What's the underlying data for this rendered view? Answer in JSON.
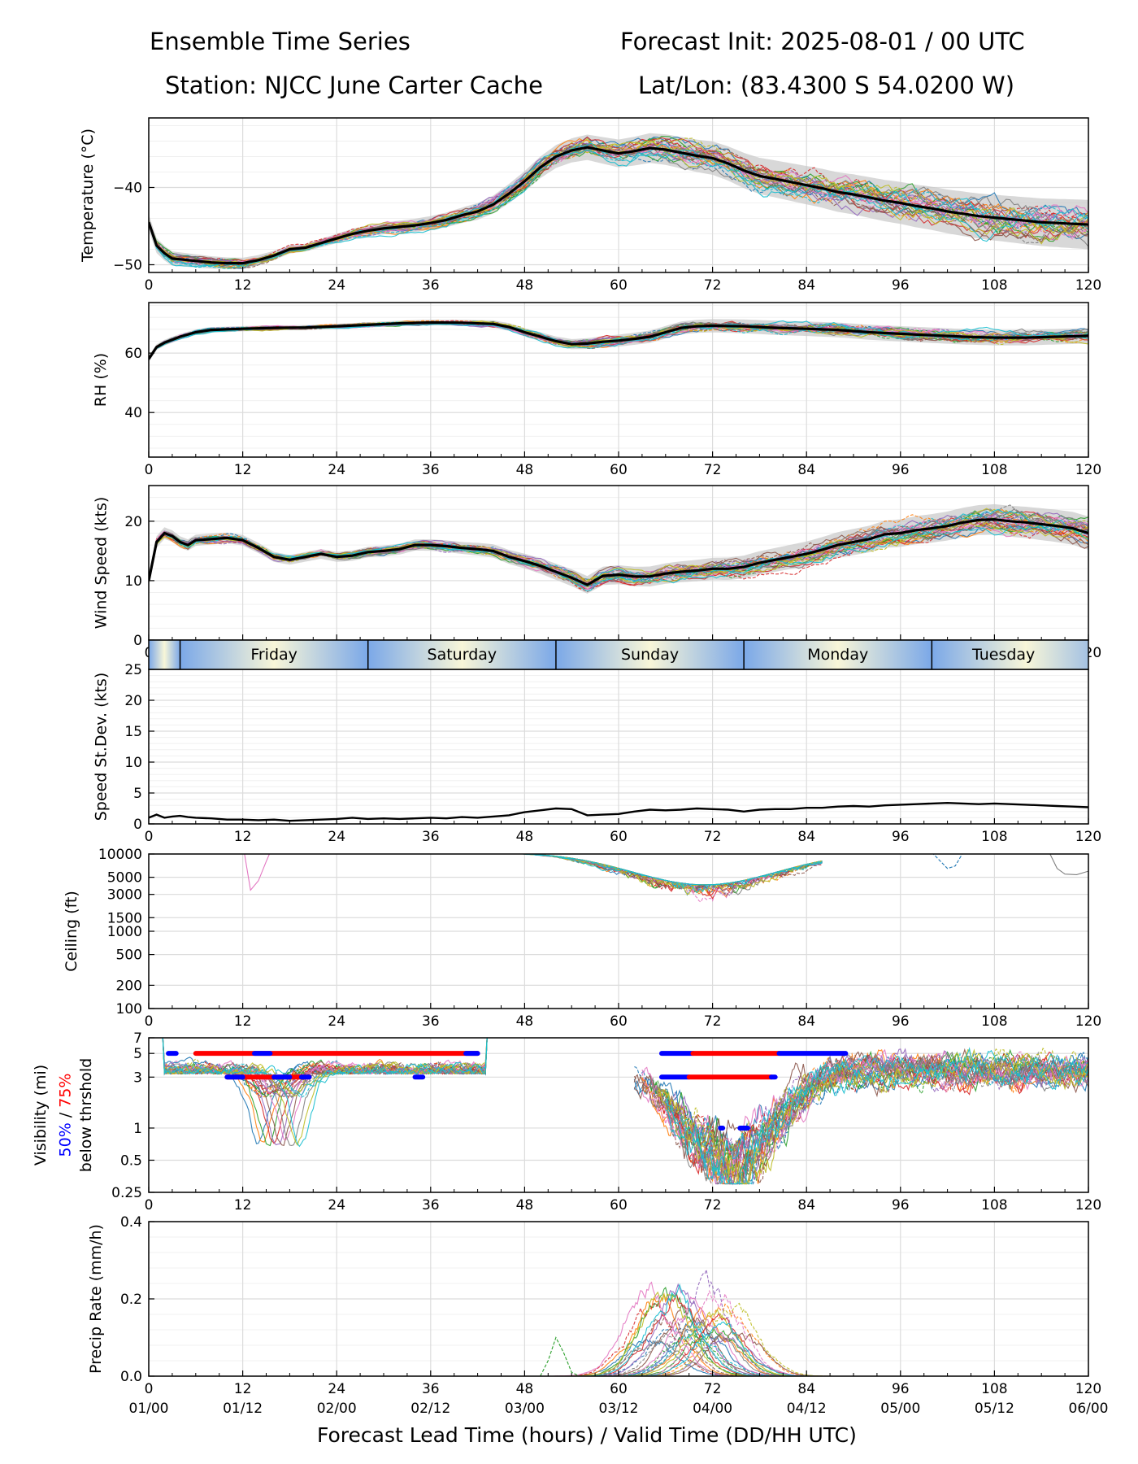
{
  "header": {
    "title_left": "Ensemble Time Series",
    "title_right": "Forecast Init: 2025-08-01 / 00 UTC",
    "station": "Station: NJCC June Carter Cache",
    "latlon": "Lat/Lon: (83.4300 S 54.0200 W)"
  },
  "xaxis": {
    "label": "Forecast Lead Time (hours) / Valid Time (DD/HH UTC)",
    "ticks": [
      0,
      12,
      24,
      36,
      48,
      60,
      72,
      84,
      96,
      108,
      120
    ],
    "valid_times": [
      "01/00",
      "01/12",
      "02/00",
      "02/12",
      "03/00",
      "03/12",
      "04/00",
      "04/12",
      "05/00",
      "05/12",
      "06/00"
    ],
    "xlim": [
      0,
      120
    ]
  },
  "days": [
    {
      "name": "Friday",
      "start": 4,
      "end": 28
    },
    {
      "name": "Saturday",
      "start": 28,
      "end": 52
    },
    {
      "name": "Sunday",
      "start": 52,
      "end": 76
    },
    {
      "name": "Monday",
      "start": 76,
      "end": 100
    },
    {
      "name": "Tuesday",
      "start": 100,
      "end": 124
    }
  ],
  "legend_note": {
    "part1": "50%",
    "sep": " / ",
    "part2": "75%",
    "color1": "#0000ff",
    "color2": "#ff0000"
  },
  "colors": {
    "mean": "#000000",
    "spread_fill": "#c8c8c8",
    "threshold_50": "#0000ff",
    "threshold_75": "#ff0000",
    "day_dark": "#7ba8e8",
    "day_light": "#f8f6d8"
  },
  "members": [
    "#1f77b4",
    "#ff7f0e",
    "#2ca02c",
    "#d62728",
    "#9467bd",
    "#8c564b",
    "#e377c2",
    "#7f7f7f",
    "#bcbd22",
    "#17becf"
  ],
  "chart_data": [
    {
      "id": "temperature",
      "type": "line",
      "ylabel": "Temperature (°C)",
      "ylim": [
        -51,
        -31
      ],
      "yticks": [
        -50,
        -40
      ],
      "ytick_labels": [
        "−50",
        "−40"
      ],
      "mean": {
        "x": [
          0,
          1,
          2,
          3,
          4,
          6,
          8,
          10,
          12,
          14,
          16,
          18,
          20,
          22,
          24,
          26,
          28,
          30,
          32,
          34,
          36,
          38,
          40,
          42,
          44,
          46,
          48,
          50,
          52,
          54,
          56,
          58,
          60,
          62,
          64,
          66,
          68,
          70,
          72,
          74,
          76,
          78,
          80,
          82,
          84,
          86,
          88,
          90,
          92,
          94,
          96,
          98,
          100,
          102,
          104,
          106,
          108,
          110,
          112,
          114,
          116,
          118,
          120
        ],
        "y": [
          -44.5,
          -47.5,
          -48.5,
          -49.2,
          -49.3,
          -49.5,
          -49.7,
          -49.8,
          -49.8,
          -49.4,
          -48.8,
          -48.0,
          -47.8,
          -47.2,
          -46.6,
          -46.0,
          -45.6,
          -45.3,
          -45.1,
          -44.9,
          -44.6,
          -44.2,
          -43.6,
          -43.1,
          -42.2,
          -40.8,
          -39.2,
          -37.4,
          -36.0,
          -35.2,
          -34.8,
          -35.2,
          -35.6,
          -35.3,
          -34.9,
          -35.1,
          -35.5,
          -35.9,
          -36.2,
          -36.9,
          -37.8,
          -38.5,
          -38.9,
          -39.3,
          -39.7,
          -40.1,
          -40.6,
          -40.9,
          -41.3,
          -41.7,
          -42.0,
          -42.4,
          -42.7,
          -43.1,
          -43.4,
          -43.7,
          -43.9,
          -44.1,
          -44.3,
          -44.5,
          -44.6,
          -44.7,
          -44.8
        ]
      },
      "spread": [
        1.0,
        0.5,
        1.0,
        1.8,
        2.4,
        2.8,
        3.2
      ]
    },
    {
      "id": "rh",
      "type": "line",
      "ylabel": "RH (%)",
      "ylim": [
        25,
        77
      ],
      "yticks": [
        40,
        60
      ],
      "ytick_labels": [
        "40",
        "60"
      ],
      "mean": {
        "x": [
          0,
          1,
          2,
          3,
          4,
          6,
          8,
          10,
          12,
          16,
          20,
          24,
          28,
          32,
          36,
          40,
          44,
          46,
          48,
          50,
          52,
          54,
          56,
          58,
          60,
          62,
          64,
          66,
          68,
          70,
          72,
          76,
          80,
          84,
          88,
          92,
          96,
          100,
          104,
          108,
          112,
          116,
          120
        ],
        "y": [
          58,
          62,
          63.5,
          64.5,
          65.5,
          67,
          67.8,
          68,
          68.2,
          68.5,
          68.6,
          69,
          69.5,
          70,
          70.3,
          70.2,
          69.8,
          68.8,
          67,
          65.5,
          64,
          63,
          63.2,
          63.8,
          64.2,
          64.8,
          65.5,
          67,
          68.5,
          69,
          69.2,
          69,
          68.5,
          68.2,
          67.8,
          67,
          66.5,
          66,
          65.5,
          65.2,
          65.2,
          65.5,
          65.8
        ]
      },
      "spread": [
        1.0,
        0.8,
        1.0,
        2.0,
        2.4,
        2.6,
        2.6
      ]
    },
    {
      "id": "wind_speed",
      "type": "line",
      "ylabel": "Wind Speed (kts)",
      "ylim": [
        0,
        26
      ],
      "yticks": [
        0,
        10,
        20
      ],
      "ytick_labels": [
        "0",
        "10",
        "20"
      ],
      "mean": {
        "x": [
          0,
          1,
          2,
          3,
          4,
          5,
          6,
          8,
          10,
          12,
          14,
          16,
          18,
          20,
          22,
          24,
          26,
          28,
          30,
          32,
          34,
          36,
          38,
          40,
          42,
          44,
          46,
          48,
          50,
          52,
          54,
          56,
          58,
          60,
          62,
          64,
          66,
          68,
          70,
          72,
          74,
          76,
          78,
          80,
          82,
          84,
          86,
          88,
          90,
          92,
          94,
          96,
          98,
          100,
          102,
          104,
          106,
          108,
          110,
          112,
          114,
          116,
          118,
          120
        ],
        "y": [
          10,
          16.5,
          18,
          17.5,
          16.5,
          16,
          16.8,
          17,
          17.2,
          16.8,
          15.5,
          14,
          13.5,
          14,
          14.5,
          14,
          14.2,
          14.8,
          15,
          15.3,
          16,
          16,
          15.8,
          15.5,
          15.3,
          15,
          14,
          13.3,
          12.5,
          11.5,
          10.5,
          9.3,
          10.8,
          11,
          10.7,
          10.7,
          11.2,
          11.5,
          11.7,
          12,
          12,
          12.3,
          13,
          13.5,
          14,
          14.5,
          15.2,
          16,
          16.5,
          17,
          17.8,
          18,
          18.5,
          18.8,
          19.2,
          19.8,
          20.2,
          20.3,
          20,
          19.8,
          19.5,
          19.2,
          18.8,
          18
        ]
      },
      "spread": [
        1.0,
        0.8,
        1.0,
        1.6,
        2.0,
        2.4,
        2.8
      ]
    },
    {
      "id": "speed_stdev",
      "type": "line",
      "ylabel": "Speed St.Dev. (kts)",
      "ylim": [
        0,
        25
      ],
      "yticks": [
        0,
        5,
        10,
        15,
        20,
        25
      ],
      "ytick_labels": [
        "0",
        "5",
        "10",
        "15",
        "20",
        "25"
      ],
      "mean": {
        "x": [
          0,
          1,
          2,
          3,
          4,
          5,
          6,
          8,
          10,
          12,
          14,
          16,
          18,
          20,
          22,
          24,
          26,
          28,
          30,
          32,
          34,
          36,
          38,
          40,
          42,
          44,
          46,
          48,
          50,
          52,
          54,
          56,
          58,
          60,
          62,
          64,
          66,
          68,
          70,
          72,
          74,
          76,
          78,
          80,
          82,
          84,
          86,
          88,
          90,
          92,
          94,
          96,
          98,
          100,
          102,
          104,
          106,
          108,
          110,
          112,
          114,
          116,
          118,
          120
        ],
        "y": [
          1.0,
          1.5,
          1.0,
          1.2,
          1.3,
          1.1,
          1.0,
          0.9,
          0.7,
          0.7,
          0.6,
          0.7,
          0.5,
          0.6,
          0.7,
          0.8,
          1.0,
          0.8,
          0.9,
          0.8,
          0.9,
          1.0,
          0.9,
          1.1,
          1.0,
          1.2,
          1.4,
          1.9,
          2.2,
          2.5,
          2.4,
          1.4,
          1.5,
          1.6,
          2.0,
          2.3,
          2.2,
          2.3,
          2.5,
          2.4,
          2.3,
          2.0,
          2.3,
          2.4,
          2.4,
          2.6,
          2.6,
          2.8,
          2.9,
          2.8,
          3.0,
          3.1,
          3.2,
          3.3,
          3.4,
          3.3,
          3.2,
          3.3,
          3.2,
          3.1,
          3.0,
          2.9,
          2.8,
          2.7
        ]
      }
    },
    {
      "id": "ceiling",
      "type": "line",
      "scale": "log",
      "ylabel": "Ceiling (ft)",
      "ylim": [
        100,
        10000
      ],
      "yticks": [
        100,
        200,
        500,
        1000,
        1500,
        3000,
        5000,
        10000
      ],
      "ytick_labels": [
        "100",
        "200",
        "500",
        "1000",
        "1500",
        "3000",
        "5000",
        "10000"
      ]
    },
    {
      "id": "visibility",
      "type": "line",
      "scale": "log",
      "ylabel": "Visibility (mi)",
      "ylabel2": "below thrshold",
      "ylim": [
        0.25,
        7
      ],
      "yticks": [
        0.25,
        0.5,
        1,
        3,
        5,
        7
      ],
      "ytick_labels": [
        "0.25",
        "0.5",
        "1",
        "3",
        "5",
        "7"
      ],
      "threshold_bars": [
        {
          "pct": 75,
          "value": 5,
          "from": 6,
          "to": 42
        },
        {
          "pct": 50,
          "value": 5,
          "from": 2.5,
          "to": 3.5
        },
        {
          "pct": 50,
          "value": 5,
          "from": 13.5,
          "to": 15.5
        },
        {
          "pct": 50,
          "value": 5,
          "from": 40.5,
          "to": 42
        },
        {
          "pct": 75,
          "value": 3,
          "from": 10,
          "to": 20.5
        },
        {
          "pct": 50,
          "value": 3,
          "from": 10,
          "to": 12
        },
        {
          "pct": 50,
          "value": 3,
          "from": 16,
          "to": 18
        },
        {
          "pct": 50,
          "value": 3,
          "from": 19.5,
          "to": 20.5
        },
        {
          "pct": 50,
          "value": 3,
          "from": 34,
          "to": 35
        },
        {
          "pct": 50,
          "value": 5,
          "from": 65.5,
          "to": 69.5
        },
        {
          "pct": 75,
          "value": 5,
          "from": 69.5,
          "to": 80.5
        },
        {
          "pct": 50,
          "value": 5,
          "from": 80.5,
          "to": 89
        },
        {
          "pct": 50,
          "value": 3,
          "from": 65.5,
          "to": 69
        },
        {
          "pct": 75,
          "value": 3,
          "from": 69,
          "to": 79.5
        },
        {
          "pct": 50,
          "value": 3,
          "from": 79.5,
          "to": 80
        },
        {
          "pct": 50,
          "value": 1,
          "from": 73,
          "to": 73.3
        },
        {
          "pct": 50,
          "value": 1,
          "from": 75.5,
          "to": 76.5
        }
      ]
    },
    {
      "id": "precip_rate",
      "type": "line",
      "ylabel": "Precip Rate (mm/h)",
      "ylim": [
        0,
        0.4
      ],
      "yticks": [
        0,
        0.2,
        0.4
      ],
      "ytick_labels": [
        "0.0",
        "0.2",
        "0.4"
      ]
    }
  ]
}
